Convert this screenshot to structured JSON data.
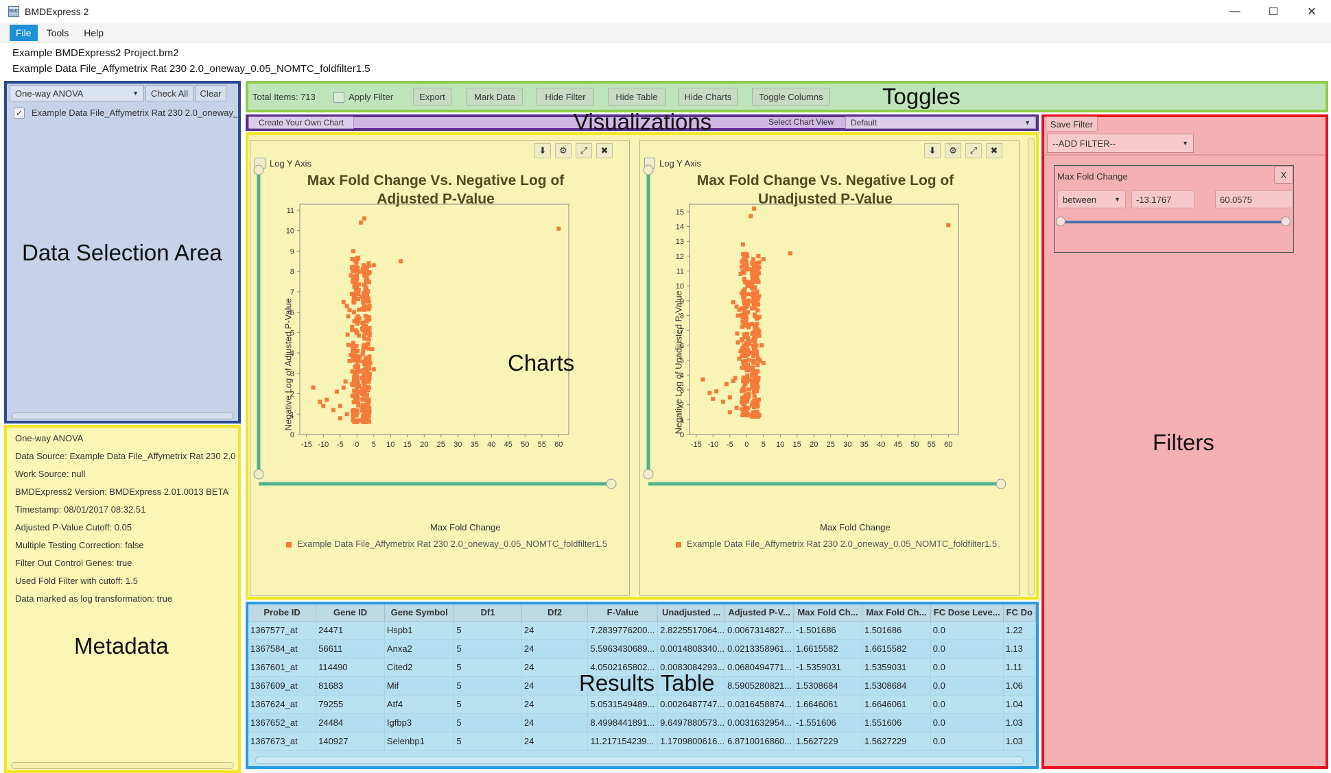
{
  "window": {
    "title": "BMDExpress 2",
    "icon_text": "BMD",
    "controls": [
      "—",
      "☐",
      "✕"
    ]
  },
  "menu": [
    "File",
    "Tools",
    "Help"
  ],
  "project": {
    "file": "Example BMDExpress2 Project.bm2",
    "dataset": "Example Data File_Affymetrix Rat 230 2.0_oneway_0.05_NOMTC_foldfilter1.5"
  },
  "overlay_labels": {
    "data_selection": "Data Selection Area",
    "metadata": "Metadata",
    "toggles": "Toggles",
    "visualizations": "Visualizations",
    "charts": "Charts",
    "results_table": "Results Table",
    "filters": "Filters"
  },
  "data_selection": {
    "analysis_type": "One-way ANOVA",
    "check_all": "Check All",
    "clear": "Clear",
    "items": [
      {
        "label": "Example Data File_Affymetrix Rat 230 2.0_oneway_",
        "checked": true
      }
    ]
  },
  "metadata": {
    "lines": [
      "One-way ANOVA",
      "Data Source: Example Data File_Affymetrix Rat 230 2.0",
      "Work Source: null",
      "BMDExpress2 Version: BMDExpress 2.01.0013 BETA",
      "Timestamp: 08/01/2017 08:32.51",
      "Adjusted P-Value Cutoff: 0.05",
      "Multiple Testing Correction: false",
      "Filter Out Control Genes: true",
      "Used Fold Filter with cutoff: 1.5",
      "Data marked as log transformation: true"
    ]
  },
  "toggles": {
    "total_items": "Total Items: 713",
    "apply_filter": "Apply Filter",
    "buttons": [
      "Export",
      "Mark Data",
      "Hide Filter",
      "Hide Table",
      "Hide Charts",
      "Toggle Columns"
    ]
  },
  "visualizations": {
    "create_chart": "Create Your Own Chart",
    "select_view_label": "Select Chart View",
    "select_view_value": "Default"
  },
  "chart_tools": [
    "⬇",
    "⚙",
    "⤢",
    "✖"
  ],
  "chart_data": [
    {
      "type": "scatter",
      "title": "Max Fold Change Vs. Negative Log of Adjusted P-Value",
      "xlabel": "Max Fold Change",
      "ylabel": "Negative Log of Adjusted P-Value",
      "log_y_label": "Log Y Axis",
      "xlim": [
        -17,
        63
      ],
      "ylim": [
        0,
        11.3
      ],
      "xticks": [
        -15,
        -10,
        -5,
        0,
        5,
        10,
        15,
        20,
        25,
        30,
        35,
        40,
        45,
        50,
        55,
        60
      ],
      "yticks": [
        0,
        1,
        2,
        3,
        4,
        5,
        6,
        7,
        8,
        9,
        10,
        11
      ],
      "legend": "Example Data File_Affymetrix Rat 230 2.0_oneway_0.05_NOMTC_foldfilter1.5",
      "color": "#f47b3a",
      "points": [
        [
          60,
          10.1
        ],
        [
          13,
          8.5
        ],
        [
          2.2,
          10.6
        ],
        [
          1.2,
          10.4
        ],
        [
          -1.1,
          9
        ],
        [
          2,
          8.3
        ],
        [
          3.5,
          8.4
        ],
        [
          5,
          8.3
        ],
        [
          -13,
          2.3
        ],
        [
          -11,
          1.6
        ],
        [
          -10,
          1.4
        ],
        [
          -9,
          1.7
        ],
        [
          -7,
          1.2
        ],
        [
          -6,
          2.1
        ],
        [
          -5,
          1.4
        ],
        [
          -4,
          2.3
        ],
        [
          -5,
          0.8
        ],
        [
          -3,
          1
        ],
        [
          -3,
          6.3
        ],
        [
          -4,
          6.5
        ],
        [
          -2.6,
          5.8
        ],
        [
          -1.8,
          7.8
        ],
        [
          -1.5,
          8.2
        ],
        [
          -2.8,
          4.9
        ],
        [
          -2.2,
          3.6
        ],
        [
          -3.4,
          2.6
        ],
        [
          4.5,
          4.2
        ],
        [
          5,
          3.2
        ],
        [
          3.5,
          2.6
        ],
        [
          4,
          3.5
        ],
        [
          2.5,
          6.2
        ],
        [
          3,
          5.6
        ],
        [
          2.5,
          7.2
        ],
        [
          3.1,
          7.5
        ],
        [
          2,
          6.8
        ],
        [
          -1.2,
          0.7
        ],
        [
          -0.8,
          1.1
        ],
        [
          1.8,
          0.8
        ],
        [
          2.1,
          1.2
        ],
        [
          -0.3,
          2.5
        ],
        [
          1.2,
          3.1
        ],
        [
          2.3,
          4.7
        ],
        [
          2.4,
          5.2
        ],
        [
          -1.8,
          3.9
        ],
        [
          -2.6,
          4.4
        ],
        [
          -1.5,
          6.9
        ],
        [
          2.2,
          7.8
        ],
        [
          1.8,
          8.0
        ],
        [
          -2.2,
          6.1
        ],
        [
          -1.3,
          4.1
        ]
      ],
      "dense_bands": [
        {
          "x": [
            -1.5,
            0.8
          ],
          "y": [
            0.6,
            8.7
          ],
          "n": 150
        },
        {
          "x": [
            1.5,
            3.8
          ],
          "y": [
            0.6,
            8.3
          ],
          "n": 170
        }
      ]
    },
    {
      "type": "scatter",
      "title": "Max Fold Change Vs. Negative Log of Unadjusted P-Value",
      "xlabel": "Max Fold Change",
      "ylabel": "Negative Log of Unadjusted P-Value",
      "log_y_label": "Log Y Axis",
      "xlim": [
        -17,
        63
      ],
      "ylim": [
        0,
        15.5
      ],
      "xticks": [
        -15,
        -10,
        -5,
        0,
        5,
        10,
        15,
        20,
        25,
        30,
        35,
        40,
        45,
        50,
        55,
        60
      ],
      "yticks": [
        0,
        1,
        2,
        3,
        4,
        5,
        6,
        7,
        8,
        9,
        10,
        11,
        12,
        13,
        14,
        15
      ],
      "legend": "Example Data File_Affymetrix Rat 230 2.0_oneway_0.05_NOMTC_foldfilter1.5",
      "color": "#f47b3a",
      "points": [
        [
          60,
          14.1
        ],
        [
          13,
          12.2
        ],
        [
          2.2,
          15.2
        ],
        [
          1.2,
          14.7
        ],
        [
          -1.1,
          12.8
        ],
        [
          2,
          11.8
        ],
        [
          3.5,
          12
        ],
        [
          5,
          11.8
        ],
        [
          -13,
          3.7
        ],
        [
          -11,
          2.8
        ],
        [
          -10,
          2.4
        ],
        [
          -9,
          2.9
        ],
        [
          -7,
          2.2
        ],
        [
          -6,
          3.4
        ],
        [
          -5,
          2.5
        ],
        [
          -4,
          3.6
        ],
        [
          -5,
          1.5
        ],
        [
          -3,
          1.8
        ],
        [
          -3,
          8.6
        ],
        [
          -4,
          8.9
        ],
        [
          -2.6,
          8
        ],
        [
          -1.8,
          10.8
        ],
        [
          -1.5,
          11.3
        ],
        [
          -2.8,
          6.8
        ],
        [
          -2.2,
          5.1
        ],
        [
          -3.4,
          3.8
        ],
        [
          4.5,
          6
        ],
        [
          5,
          4.8
        ],
        [
          3.5,
          3.8
        ],
        [
          4,
          5
        ],
        [
          2.5,
          8.5
        ],
        [
          3,
          7.8
        ],
        [
          2.5,
          9.9
        ],
        [
          3.1,
          10.4
        ],
        [
          2,
          9.4
        ],
        [
          -1.2,
          1.3
        ],
        [
          -0.8,
          2
        ],
        [
          1.8,
          1.4
        ],
        [
          2.1,
          2.1
        ],
        [
          -0.3,
          3.7
        ],
        [
          1.2,
          4.5
        ],
        [
          2.3,
          6.6
        ],
        [
          2.4,
          7.2
        ],
        [
          -1.8,
          5.6
        ],
        [
          -2.6,
          6.2
        ],
        [
          -1.5,
          9.5
        ],
        [
          2.2,
          10.8
        ],
        [
          1.8,
          11
        ],
        [
          -2.2,
          8.4
        ],
        [
          -1.3,
          5.8
        ]
      ],
      "dense_bands": [
        {
          "x": [
            -1.5,
            0.8
          ],
          "y": [
            1.2,
            12.2
          ],
          "n": 150
        },
        {
          "x": [
            1.5,
            3.8
          ],
          "y": [
            1.2,
            11.6
          ],
          "n": 170
        }
      ]
    }
  ],
  "results_table": {
    "columns": [
      "Probe ID",
      "Gene ID",
      "Gene Symbol",
      "Df1",
      "Df2",
      "F-Value",
      "Unadjusted ...",
      "Adjusted P-V...",
      "Max Fold Ch...",
      "Max Fold Ch...",
      "FC Dose Leve...",
      "FC Do"
    ],
    "rows": [
      [
        "1367577_at",
        "24471",
        "Hspb1",
        "5",
        "24",
        "7.2839776200...",
        "2.8225517064...",
        "0.0067314827...",
        "-1.501686",
        "1.501686",
        "0.0",
        "1.22"
      ],
      [
        "1367584_at",
        "56611",
        "Anxa2",
        "5",
        "24",
        "5.5963430689...",
        "0.0014808340...",
        "0.0213358961...",
        "1.6615582",
        "1.6615582",
        "0.0",
        "1.13"
      ],
      [
        "1367601_at",
        "114490",
        "Cited2",
        "5",
        "24",
        "4.0502165802...",
        "0.0083084293...",
        "0.0680494771...",
        "-1.5359031",
        "1.5359031",
        "0.0",
        "1.11"
      ],
      [
        "1367609_at",
        "81683",
        "Mif",
        "5",
        "24",
        "",
        "",
        "8.5905280821...",
        "1.5308684",
        "1.5308684",
        "0.0",
        "1.06"
      ],
      [
        "1367624_at",
        "79255",
        "Atf4",
        "5",
        "24",
        "5.0531549489...",
        "0.0026487747...",
        "0.0316458874...",
        "1.6646061",
        "1.6646061",
        "0.0",
        "1.04"
      ],
      [
        "1367652_at",
        "24484",
        "Igfbp3",
        "5",
        "24",
        "8.4998441891...",
        "9.6497880573...",
        "0.0031632954...",
        "-1.551606",
        "1.551606",
        "0.0",
        "1.03"
      ],
      [
        "1367673_at",
        "140927",
        "Selenbp1",
        "5",
        "24",
        "11.217154239...",
        "1.1709800616...",
        "6.8710016860...",
        "1.5627229",
        "1.5627229",
        "0.0",
        "1.03"
      ]
    ]
  },
  "filters": {
    "save_filter": "Save Filter",
    "add_filter": "--ADD FILTER--",
    "box_title": "Max Fold Change",
    "close": "X",
    "operator": "between",
    "min_value": "-13.1767",
    "max_value": "60.0575"
  }
}
